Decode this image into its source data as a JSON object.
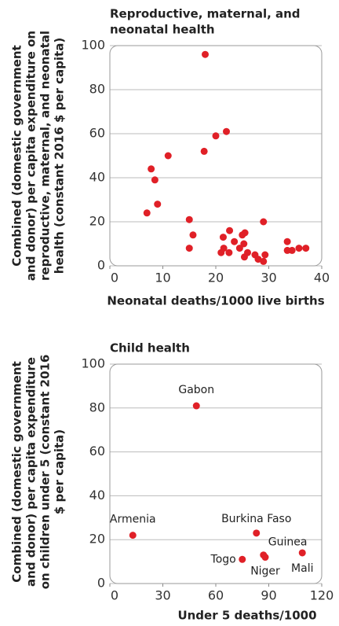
{
  "chart_data": [
    {
      "type": "scatter",
      "title": [
        "Reproductive, maternal, and",
        "neonatal health"
      ],
      "y_label": [
        "Combined (domestic government",
        "and donor) per capita expenditure on",
        "reproductive, maternal, and neonatal",
        "health (constant 2016 $ per capita)"
      ],
      "x_label": "Neonatal deaths/1000 live births",
      "xlim": [
        0,
        40
      ],
      "xticks": [
        0,
        10,
        20,
        30,
        40
      ],
      "ylim": [
        0,
        100
      ],
      "yticks": [
        0,
        20,
        40,
        60,
        80,
        100
      ],
      "grid": true,
      "color": "#e02027",
      "x": [
        18,
        20,
        22,
        17.8,
        11,
        7.8,
        8.5,
        9,
        7,
        15,
        15.7,
        15,
        29,
        21.4,
        22.6,
        23.5,
        21.5,
        21,
        22.5,
        24.5,
        25,
        25.5,
        25.3,
        26,
        25.4,
        27.4,
        28,
        29.3,
        29,
        33.5,
        34.4,
        33.5,
        35.7,
        37
      ],
      "values": [
        96,
        59,
        61,
        52,
        50,
        44,
        39,
        28,
        24,
        21,
        14,
        8,
        20,
        13,
        16,
        11,
        8,
        6,
        6,
        8,
        14,
        15,
        10,
        6,
        4,
        5,
        3,
        5,
        2,
        7,
        7,
        11,
        8,
        8
      ]
    },
    {
      "type": "scatter",
      "title": [
        "Child health"
      ],
      "y_label": [
        "Combined (domestic government",
        "and donor) per capita expenditure",
        "on children under 5 (constant 2016",
        "$ per capita)"
      ],
      "x_label": "Under 5 deaths/1000",
      "xlim": [
        0,
        120
      ],
      "xticks": [
        0,
        30,
        60,
        90,
        120
      ],
      "ylim": [
        0,
        100
      ],
      "yticks": [
        0,
        20,
        40,
        60,
        80,
        100
      ],
      "grid": true,
      "color": "#e02027",
      "labels": [
        "Gabon",
        "Armenia",
        "Burkina Faso",
        "Guinea",
        "Togo",
        "Niger",
        "Mali"
      ],
      "x": [
        49,
        13,
        83,
        87,
        75,
        88,
        109
      ],
      "values": [
        81,
        22,
        23,
        13,
        11,
        12,
        14
      ]
    }
  ]
}
